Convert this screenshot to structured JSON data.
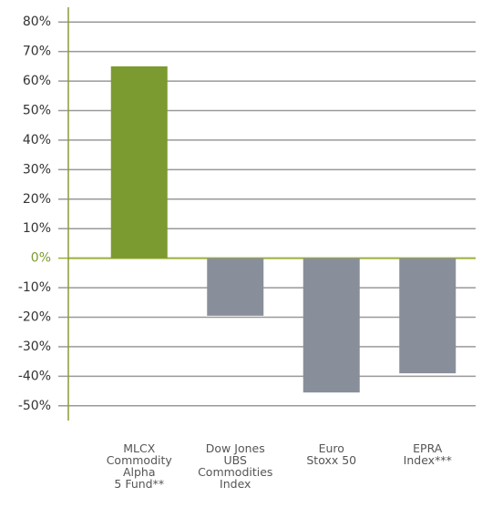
{
  "chart_data": {
    "type": "bar",
    "categories": [
      "MLCX\nCommodity\nAlpha\n5 Fund**",
      "Dow Jones\nUBS\nCommodities\nIndex",
      "Euro\nStoxx 50",
      "EPRA\nIndex***"
    ],
    "values": [
      65,
      -19.5,
      -45.5,
      -39
    ],
    "colors": [
      "#7b9a2f",
      "#898e9b",
      "#898e9b",
      "#898e9b"
    ],
    "ylim": [
      -55,
      85
    ],
    "yticks": [
      {
        "value": -50,
        "label": "-50%"
      },
      {
        "value": -40,
        "label": "-40%"
      },
      {
        "value": -30,
        "label": "-30%"
      },
      {
        "value": -20,
        "label": "-20%"
      },
      {
        "value": -10,
        "label": "-10%"
      },
      {
        "value": 0,
        "label": "0%"
      },
      {
        "value": 10,
        "label": "10%"
      },
      {
        "value": 20,
        "label": "20%"
      },
      {
        "value": 30,
        "label": "30%"
      },
      {
        "value": 40,
        "label": "40%"
      },
      {
        "value": 50,
        "label": "50%"
      },
      {
        "value": 60,
        "label": "60%"
      },
      {
        "value": 70,
        "label": "70%"
      },
      {
        "value": 80,
        "label": "80%"
      }
    ],
    "grid": true
  }
}
